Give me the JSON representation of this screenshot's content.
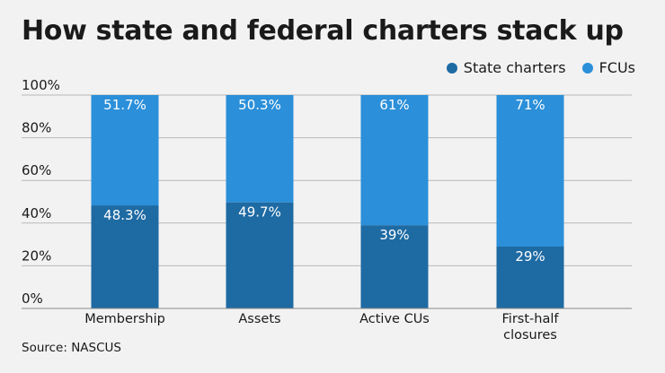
{
  "title": "How state and federal charters stack up",
  "source": "Source: NASCUS",
  "colors": {
    "state": "#1e6aa3",
    "fcu": "#2b8fd9",
    "grid": "#b8b8b8",
    "background": "#f2f2f2"
  },
  "legend": [
    {
      "label": "State charters",
      "color": "#1e6aa3"
    },
    {
      "label": "FCUs",
      "color": "#2b8fd9"
    }
  ],
  "chart_data": {
    "type": "bar",
    "stacked": true,
    "title": "How state and federal charters stack up",
    "categories": [
      [
        "Membership"
      ],
      [
        "Assets"
      ],
      [
        "Active CUs"
      ],
      [
        "First-half",
        "closures"
      ]
    ],
    "series": [
      {
        "name": "State charters",
        "values": [
          48.3,
          49.7,
          39,
          29
        ],
        "labels": [
          "48.3%",
          "49.7%",
          "39%",
          "29%"
        ]
      },
      {
        "name": "FCUs",
        "values": [
          51.7,
          50.3,
          61,
          71
        ],
        "labels": [
          "51.7%",
          "50.3%",
          "61%",
          "71%"
        ]
      }
    ],
    "yticks": [
      "0%",
      "20%",
      "40%",
      "60%",
      "80%",
      "100%"
    ],
    "ylim": [
      0,
      100
    ],
    "grid": true,
    "legend_position": "top-right",
    "xlabel": "",
    "ylabel": ""
  }
}
